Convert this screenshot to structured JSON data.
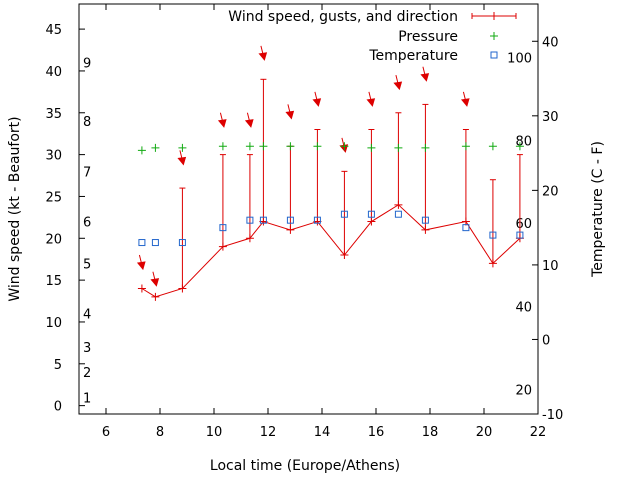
{
  "chart_data": {
    "type": "line",
    "xlabel": "Local time (Europe/Athens)",
    "ylabel_left": "Wind speed (kt - Beaufort)",
    "ylabel_right": "Temperature (C - F)",
    "x_range": [
      5,
      22
    ],
    "x_ticks": [
      6,
      8,
      10,
      12,
      14,
      16,
      18,
      20,
      22
    ],
    "y_left_range": [
      -1,
      48
    ],
    "y_left_ticks": [
      0,
      5,
      10,
      15,
      20,
      25,
      30,
      35,
      40,
      45
    ],
    "beaufort_labels": [
      {
        "label": "1",
        "kt": 1
      },
      {
        "label": "2",
        "kt": 4
      },
      {
        "label": "3",
        "kt": 7
      },
      {
        "label": "4",
        "kt": 11
      },
      {
        "label": "5",
        "kt": 17
      },
      {
        "label": "6",
        "kt": 22
      },
      {
        "label": "7",
        "kt": 28
      },
      {
        "label": "8",
        "kt": 34
      },
      {
        "label": "9",
        "kt": 41
      }
    ],
    "y_right_range": [
      -10,
      45
    ],
    "y_right_ticks": [
      -10,
      0,
      10,
      20,
      30,
      40
    ],
    "fahrenheit_labels": [
      {
        "label": "20",
        "c": -6.7
      },
      {
        "label": "40",
        "c": 4.4
      },
      {
        "label": "60",
        "c": 15.6
      },
      {
        "label": "80",
        "c": 26.7
      },
      {
        "label": "100",
        "c": 37.8
      }
    ],
    "legend": [
      {
        "name": "Wind speed, gusts, and direction",
        "color": "#dd0000",
        "marker": "line-plus"
      },
      {
        "name": "Pressure",
        "color": "#11aa11",
        "marker": "plus"
      },
      {
        "name": "Temperature",
        "color": "#2266cc",
        "marker": "square"
      }
    ],
    "series": [
      {
        "name": "Wind speed, gusts, and direction",
        "x": [
          7.33,
          7.83,
          8.83,
          10.33,
          11.33,
          11.83,
          12.83,
          13.83,
          14.83,
          15.83,
          16.83,
          17.83,
          19.33,
          20.33,
          21.33
        ],
        "speed": [
          14,
          13,
          14,
          19,
          20,
          22,
          21,
          22,
          18,
          22,
          24,
          21,
          22,
          17,
          20
        ],
        "gust": [
          14,
          13,
          26,
          30,
          30,
          39,
          31,
          33,
          28,
          33,
          35,
          36,
          33,
          27,
          30
        ],
        "arrow_top_kt": [
          18,
          16,
          30.5,
          35,
          35,
          43,
          36,
          37.5,
          32,
          37.5,
          39.5,
          40.5,
          37.5,
          null,
          null
        ]
      },
      {
        "name": "Pressure",
        "x": [
          7.33,
          7.83,
          8.83,
          10.33,
          11.33,
          11.83,
          12.83,
          13.83,
          14.83,
          15.83,
          16.83,
          17.83,
          19.33,
          20.33,
          21.33
        ],
        "values_kt_scale": [
          30.5,
          30.8,
          30.8,
          31,
          31,
          31,
          31,
          31,
          31,
          30.8,
          30.8,
          30.8,
          31,
          31,
          31
        ]
      },
      {
        "name": "Temperature",
        "x": [
          7.33,
          7.83,
          8.83,
          10.33,
          11.33,
          11.83,
          12.83,
          13.83,
          14.83,
          15.83,
          16.83,
          17.83,
          19.33,
          20.33,
          21.33
        ],
        "values_c": [
          13,
          13,
          13,
          15,
          16,
          16,
          16,
          16,
          16.8,
          16.8,
          16.8,
          16,
          15,
          14,
          14
        ]
      }
    ]
  }
}
